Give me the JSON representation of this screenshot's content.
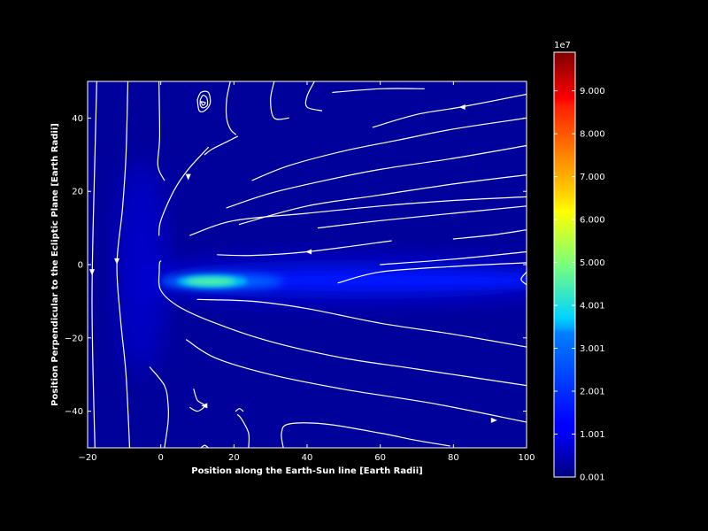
{
  "chart_data": {
    "type": "heatmap",
    "title": "",
    "xlabel": "Position along the Earth-Sun line [Earth Radii]",
    "ylabel": "Position Perpendicular to the Ecliptic Plane [Earth Radii]",
    "xlim": [
      -20,
      100
    ],
    "ylim": [
      -50,
      50
    ],
    "x_ticks": [
      -20,
      0,
      20,
      40,
      60,
      80,
      100
    ],
    "x_tick_labels": [
      "−20",
      "0",
      "20",
      "40",
      "60",
      "80",
      "100"
    ],
    "y_ticks": [
      40,
      20,
      0,
      -20,
      -40
    ],
    "y_tick_labels": [
      "40",
      "20",
      "0",
      "−20",
      "−40"
    ],
    "colormap": "jet",
    "background": "#000000",
    "streamline_color": "#ffffff",
    "colorbar": {
      "multiplier": "1e7",
      "range": [
        0.001,
        9.9
      ],
      "ticks": [
        0.001,
        1.001,
        2.001,
        3.001,
        4.001,
        5.0,
        6.0,
        7.0,
        8.0,
        9.0
      ],
      "tick_labels": [
        "0.001",
        "1.001",
        "2.001",
        "3.001",
        "4.001",
        "5.000",
        "6.000",
        "7.000",
        "8.000",
        "9.000"
      ]
    },
    "field_features": {
      "background_level": 0.25,
      "current_sheet": {
        "z": -4,
        "x_start": 2,
        "x_end": 100,
        "peak_x": 15,
        "peak_value": 4.0,
        "tail_value": 1.3
      },
      "bow_region": {
        "x": -5,
        "value": 0.8
      }
    },
    "streamlines": [
      {
        "points": [
          [
            -17.5,
            50
          ],
          [
            -18,
            30
          ],
          [
            -18.5,
            10
          ],
          [
            -18.8,
            -10
          ],
          [
            -18.5,
            -30
          ],
          [
            -18,
            -50
          ]
        ],
        "arrows": [
          [
            -18.8,
            -2,
            "down"
          ]
        ]
      },
      {
        "points": [
          [
            -9,
            50
          ],
          [
            -9.5,
            30
          ],
          [
            -10.5,
            15
          ],
          [
            -12,
            0
          ],
          [
            -11,
            -15
          ],
          [
            -9.5,
            -30
          ],
          [
            -8.5,
            -50
          ]
        ],
        "arrows": [
          [
            -12,
            1,
            "down"
          ]
        ]
      },
      {
        "points": [
          [
            -0.5,
            50
          ],
          [
            -0.3,
            35
          ],
          [
            -0.8,
            27
          ],
          [
            1,
            23
          ]
        ]
      },
      {
        "points": [
          [
            20.5,
            35.5
          ],
          [
            19,
            37
          ],
          [
            18,
            40
          ],
          [
            18,
            45
          ],
          [
            19,
            50
          ]
        ]
      },
      {
        "points": [
          [
            31,
            50
          ],
          [
            30,
            45
          ],
          [
            31,
            40
          ],
          [
            35,
            40
          ]
        ]
      },
      {
        "points": [
          [
            42,
            50
          ],
          [
            40,
            46
          ],
          [
            40,
            43
          ],
          [
            44,
            42
          ]
        ]
      },
      {
        "points": [
          [
            47,
            47
          ],
          [
            60,
            48
          ],
          [
            72,
            48
          ]
        ]
      },
      {
        "points": [
          [
            58,
            37.5
          ],
          [
            70,
            41
          ],
          [
            82,
            43
          ],
          [
            100,
            46.5
          ]
        ],
        "arrows": [
          [
            82.5,
            43,
            "left"
          ]
        ]
      },
      {
        "points": [
          [
            25,
            23
          ],
          [
            35,
            27
          ],
          [
            50,
            31
          ],
          [
            65,
            34
          ],
          [
            80,
            37
          ],
          [
            100,
            40
          ]
        ]
      },
      {
        "points": [
          [
            18,
            15.5
          ],
          [
            30,
            19.5
          ],
          [
            45,
            23
          ],
          [
            60,
            26
          ],
          [
            80,
            29
          ],
          [
            100,
            32.5
          ]
        ]
      },
      {
        "points": [
          [
            21.5,
            11
          ],
          [
            40,
            16
          ],
          [
            60,
            19
          ],
          [
            80,
            22
          ],
          [
            100,
            24.5
          ]
        ]
      },
      {
        "points": [
          [
            8,
            8
          ],
          [
            20,
            12
          ],
          [
            40,
            14
          ],
          [
            60,
            16
          ],
          [
            80,
            17.5
          ],
          [
            100,
            18.5
          ]
        ]
      },
      {
        "points": [
          [
            43,
            10
          ],
          [
            60,
            12
          ],
          [
            80,
            14
          ],
          [
            100,
            16
          ]
        ]
      },
      {
        "points": [
          [
            80,
            7
          ],
          [
            90,
            8
          ],
          [
            100,
            9.5
          ]
        ]
      },
      {
        "points": [
          [
            15.5,
            2.7
          ],
          [
            25,
            2.5
          ],
          [
            40,
            3.5
          ],
          [
            63,
            6.5
          ]
        ],
        "arrows": [
          [
            40.5,
            3.5,
            "left"
          ]
        ]
      },
      {
        "points": [
          [
            100,
            3.5
          ],
          [
            80,
            1.5
          ],
          [
            60,
            0
          ]
        ]
      },
      {
        "points": [
          [
            48.5,
            -5
          ],
          [
            60,
            -2
          ],
          [
            80,
            -0.5
          ],
          [
            100,
            0.5
          ]
        ]
      },
      {
        "points": [
          [
            100,
            -2
          ],
          [
            98.5,
            -4
          ],
          [
            100,
            -5.5
          ]
        ]
      },
      {
        "points": [
          [
            21,
            35
          ],
          [
            18,
            33.5
          ],
          [
            14,
            31.5
          ],
          [
            12,
            30
          ]
        ]
      },
      {
        "points": [
          [
            13,
            32
          ],
          [
            7.5,
            26
          ],
          [
            3.5,
            20
          ],
          [
            0,
            12
          ],
          [
            -0.5,
            8
          ]
        ],
        "arrows": [
          [
            7.5,
            24,
            "down"
          ]
        ]
      },
      {
        "points": [
          [
            0,
            1
          ],
          [
            -0.3,
            0.5
          ],
          [
            -0.4,
            -1.5
          ],
          [
            0,
            -7
          ],
          [
            5,
            -11.5
          ],
          [
            15,
            -16
          ],
          [
            30,
            -21
          ],
          [
            50,
            -25.5
          ],
          [
            70,
            -28.5
          ],
          [
            100,
            -33
          ]
        ]
      },
      {
        "points": [
          [
            10,
            -9.5
          ],
          [
            25,
            -10
          ],
          [
            40,
            -12
          ],
          [
            60,
            -16
          ],
          [
            80,
            -19
          ],
          [
            100,
            -22.5
          ]
        ]
      },
      {
        "points": [
          [
            7,
            -20.5
          ],
          [
            15,
            -25.5
          ],
          [
            30,
            -30
          ],
          [
            50,
            -34
          ],
          [
            75,
            -38
          ],
          [
            100,
            -43
          ]
        ],
        "arrows": [
          [
            91,
            -42.5,
            "right"
          ]
        ]
      },
      {
        "points": [
          [
            -3,
            -28
          ],
          [
            1,
            -33
          ],
          [
            2,
            -38
          ],
          [
            2,
            -43
          ],
          [
            1,
            -50
          ]
        ]
      },
      {
        "points": [
          [
            9,
            -34
          ],
          [
            10,
            -37
          ],
          [
            12,
            -38.5
          ],
          [
            10,
            -40
          ],
          [
            8,
            -39
          ]
        ],
        "arrows": [
          [
            12,
            -38.5,
            "left"
          ]
        ]
      },
      {
        "points": [
          [
            21,
            -41
          ],
          [
            22,
            -42
          ],
          [
            24,
            -46
          ],
          [
            24,
            -50
          ]
        ]
      },
      {
        "points": [
          [
            33.5,
            -50
          ],
          [
            33,
            -46
          ],
          [
            35,
            -43.5
          ],
          [
            45,
            -43.5
          ],
          [
            60,
            -46
          ],
          [
            70,
            -48
          ],
          [
            79,
            -49.5
          ]
        ]
      },
      {
        "points": [
          [
            10,
            45
          ],
          [
            11,
            47
          ],
          [
            13,
            47
          ],
          [
            13.5,
            44
          ],
          [
            12,
            42
          ],
          [
            10.5,
            42
          ],
          [
            10,
            45
          ]
        ]
      },
      {
        "points": [
          [
            10.8,
            45
          ],
          [
            11.5,
            46.2
          ],
          [
            12.6,
            45.5
          ],
          [
            12.7,
            43.5
          ],
          [
            11.5,
            42.8
          ],
          [
            10.8,
            43.6
          ],
          [
            10.8,
            45
          ]
        ]
      },
      {
        "points": [
          [
            11,
            44.5
          ],
          [
            12.2,
            44.2
          ],
          [
            11.5,
            43.5
          ],
          [
            11,
            44.5
          ]
        ]
      },
      {
        "points": [
          [
            11,
            -50
          ],
          [
            12,
            -49.3
          ],
          [
            13,
            -50
          ]
        ]
      },
      {
        "points": [
          [
            20.5,
            -40
          ],
          [
            21.5,
            -39.3
          ],
          [
            22.5,
            -40
          ]
        ]
      }
    ]
  }
}
